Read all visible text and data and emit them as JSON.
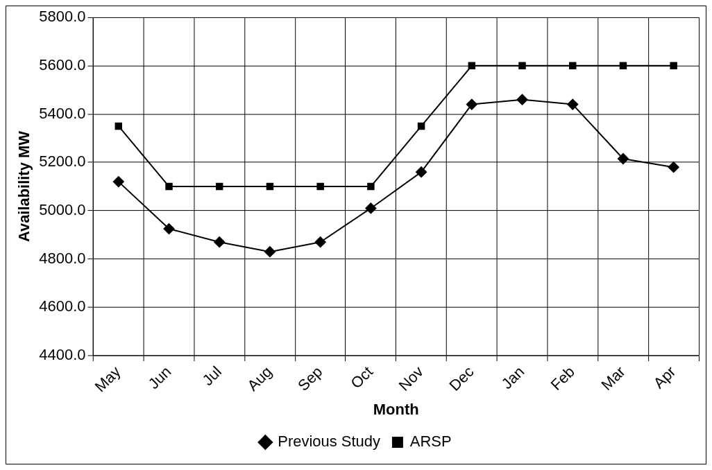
{
  "chart_data": {
    "type": "line",
    "xlabel": "Month",
    "ylabel": "Availability MW",
    "categories": [
      "May",
      "Jun",
      "Jul",
      "Aug",
      "Sep",
      "Oct",
      "Nov",
      "Dec",
      "Jan",
      "Feb",
      "Mar",
      "Apr"
    ],
    "series": [
      {
        "name": "Previous Study",
        "color": "#000000",
        "marker": "diamond",
        "values": [
          5120,
          4925,
          4870,
          4830,
          4870,
          5010,
          5160,
          5440,
          5460,
          5440,
          5215,
          5180
        ]
      },
      {
        "name": "ARSP",
        "color": "#000000",
        "marker": "square",
        "values": [
          5350,
          5100,
          5100,
          5100,
          5100,
          5100,
          5350,
          5600,
          5600,
          5600,
          5600,
          5600
        ]
      }
    ],
    "ylim": [
      4400,
      5800
    ],
    "yticks": [
      {
        "value": 4400,
        "label": "4400.0"
      },
      {
        "value": 4600,
        "label": "4600.0"
      },
      {
        "value": 4800,
        "label": "4800.0"
      },
      {
        "value": 5000,
        "label": "5000.0"
      },
      {
        "value": 5200,
        "label": "5200.0"
      },
      {
        "value": 5400,
        "label": "5400.0"
      },
      {
        "value": 5600,
        "label": "5600.0"
      },
      {
        "value": 5800,
        "label": "5800.0"
      }
    ],
    "grid": true,
    "legend": "bottom",
    "line_style": "solid"
  }
}
